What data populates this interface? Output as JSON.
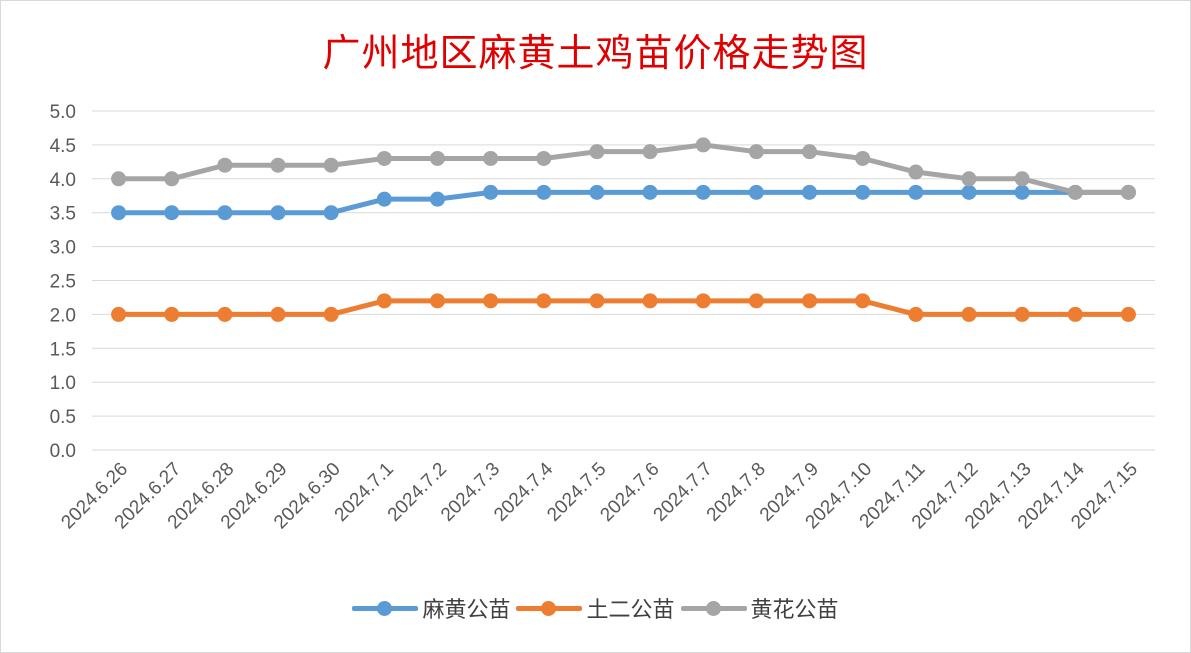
{
  "chart_data": {
    "type": "line",
    "title": "广州地区麻黄土鸡苗价格走势图",
    "categories": [
      "2024.6.26",
      "2024.6.27",
      "2024.6.28",
      "2024.6.29",
      "2024.6.30",
      "2024.7.1",
      "2024.7.2",
      "2024.7.3",
      "2024.7.4",
      "2024.7.5",
      "2024.7.6",
      "2024.7.7",
      "2024.7.8",
      "2024.7.9",
      "2024.7.10",
      "2024.7.11",
      "2024.7.12",
      "2024.7.13",
      "2024.7.14",
      "2024.7.15"
    ],
    "series": [
      {
        "name": "麻黄公苗",
        "color": "#5b9bd5",
        "values": [
          3.5,
          3.5,
          3.5,
          3.5,
          3.5,
          3.7,
          3.7,
          3.8,
          3.8,
          3.8,
          3.8,
          3.8,
          3.8,
          3.8,
          3.8,
          3.8,
          3.8,
          3.8,
          3.8,
          3.8
        ]
      },
      {
        "name": "土二公苗",
        "color": "#ed7d31",
        "values": [
          2.0,
          2.0,
          2.0,
          2.0,
          2.0,
          2.2,
          2.2,
          2.2,
          2.2,
          2.2,
          2.2,
          2.2,
          2.2,
          2.2,
          2.2,
          2.0,
          2.0,
          2.0,
          2.0,
          2.0
        ]
      },
      {
        "name": "黄花公苗",
        "color": "#a5a5a5",
        "values": [
          4.0,
          4.0,
          4.2,
          4.2,
          4.2,
          4.3,
          4.3,
          4.3,
          4.3,
          4.4,
          4.4,
          4.5,
          4.4,
          4.4,
          4.3,
          4.1,
          4.0,
          4.0,
          3.8,
          3.8
        ]
      }
    ],
    "yticks": [
      "0.0",
      "0.5",
      "1.0",
      "1.5",
      "2.0",
      "2.5",
      "3.0",
      "3.5",
      "4.0",
      "4.5",
      "5.0"
    ],
    "ylim": [
      0,
      5.0
    ],
    "xlabel": "",
    "ylabel": "",
    "grid": true,
    "legend_position": "bottom"
  }
}
